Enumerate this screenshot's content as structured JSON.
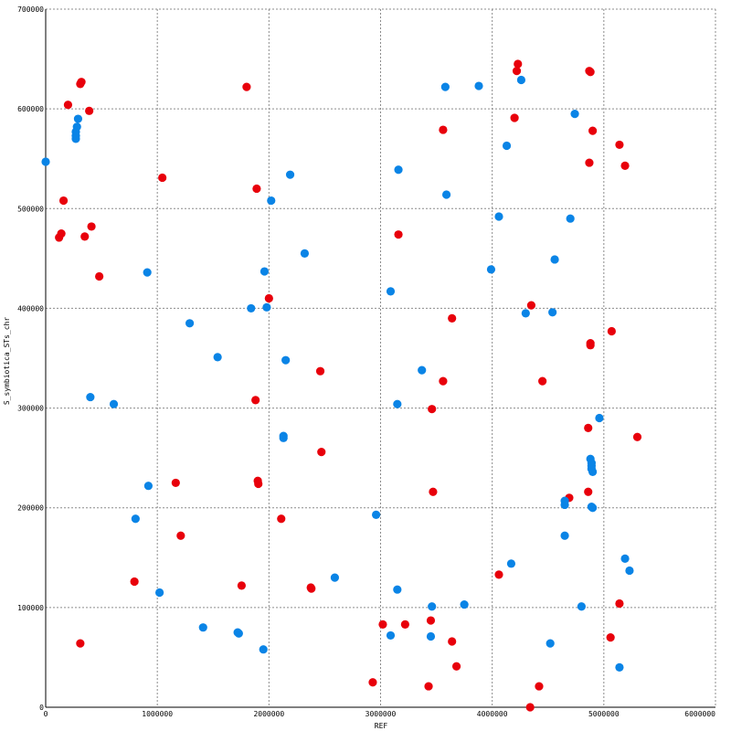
{
  "chart_data": {
    "type": "scatter",
    "title": "",
    "xlabel": "REF",
    "ylabel": "S_symbiotica_STs_chr",
    "xlim": [
      0,
      6000000
    ],
    "ylim": [
      0,
      700000
    ],
    "x_ticks": [
      0,
      1000000,
      2000000,
      3000000,
      4000000,
      5000000,
      6000000
    ],
    "y_ticks": [
      0,
      100000,
      200000,
      300000,
      400000,
      500000,
      600000,
      700000
    ],
    "x_tick_labels": [
      "0",
      "1000000",
      "2000000",
      "3000000",
      "4000000",
      "5000000",
      "6000000"
    ],
    "y_tick_labels": [
      "0",
      "100000",
      "200000",
      "300000",
      "400000",
      "500000",
      "600000",
      "700000"
    ],
    "grid": true,
    "legend": "none",
    "colors": {
      "red": "#e8000b",
      "blue": "#0a84e6",
      "grid": "#8c8c8c"
    },
    "series": [
      {
        "color": "#e8000b",
        "points": [
          [
            320000,
            627000
          ],
          [
            310000,
            625000
          ],
          [
            200000,
            604000
          ],
          [
            390000,
            598000
          ],
          [
            1045000,
            531000
          ],
          [
            1800000,
            622000
          ],
          [
            1890000,
            520000
          ],
          [
            160000,
            508000
          ],
          [
            140000,
            475000
          ],
          [
            120000,
            471000
          ],
          [
            410000,
            482000
          ],
          [
            350000,
            472000
          ],
          [
            480000,
            432000
          ],
          [
            2000000,
            410000
          ],
          [
            1880000,
            308000
          ],
          [
            2460000,
            337000
          ],
          [
            2470000,
            256000
          ],
          [
            1165000,
            225000
          ],
          [
            1900000,
            227000
          ],
          [
            1905000,
            224000
          ],
          [
            2110000,
            189000
          ],
          [
            1210000,
            172000
          ],
          [
            795000,
            126000
          ],
          [
            1755000,
            122000
          ],
          [
            2375000,
            120000
          ],
          [
            2380000,
            119000
          ],
          [
            310000,
            64000
          ],
          [
            3160000,
            474000
          ],
          [
            3640000,
            390000
          ],
          [
            3560000,
            327000
          ],
          [
            3460000,
            299000
          ],
          [
            3470000,
            216000
          ],
          [
            3020000,
            83000
          ],
          [
            3220000,
            83000
          ],
          [
            3450000,
            87000
          ],
          [
            3640000,
            66000
          ],
          [
            3680000,
            41000
          ],
          [
            2930000,
            25000
          ],
          [
            3430000,
            21000
          ],
          [
            3560000,
            579000
          ],
          [
            4230000,
            645000
          ],
          [
            4220000,
            638000
          ],
          [
            4200000,
            591000
          ],
          [
            4350000,
            403000
          ],
          [
            4450000,
            327000
          ],
          [
            4060000,
            133000
          ],
          [
            4420000,
            21000
          ],
          [
            4340000,
            0
          ],
          [
            4870000,
            638000
          ],
          [
            4880000,
            637000
          ],
          [
            4900000,
            578000
          ],
          [
            4870000,
            546000
          ],
          [
            5140000,
            564000
          ],
          [
            5190000,
            543000
          ],
          [
            4880000,
            365000
          ],
          [
            4880000,
            363000
          ],
          [
            5070000,
            377000
          ],
          [
            4860000,
            280000
          ],
          [
            4860000,
            216000
          ],
          [
            4690000,
            210000
          ],
          [
            5300000,
            271000
          ],
          [
            5140000,
            104000
          ],
          [
            5060000,
            70000
          ]
        ]
      },
      {
        "color": "#0a84e6",
        "points": [
          [
            0,
            547000
          ],
          [
            290000,
            590000
          ],
          [
            280000,
            582000
          ],
          [
            270000,
            577000
          ],
          [
            270000,
            573000
          ],
          [
            270000,
            570000
          ],
          [
            910000,
            436000
          ],
          [
            1290000,
            385000
          ],
          [
            1540000,
            351000
          ],
          [
            400000,
            311000
          ],
          [
            610000,
            304000
          ],
          [
            920000,
            222000
          ],
          [
            805000,
            189000
          ],
          [
            1020000,
            115000
          ],
          [
            1410000,
            80000
          ],
          [
            1720000,
            75000
          ],
          [
            1730000,
            74000
          ],
          [
            1950000,
            58000
          ],
          [
            2190000,
            534000
          ],
          [
            2020000,
            508000
          ],
          [
            2320000,
            455000
          ],
          [
            1960000,
            437000
          ],
          [
            1840000,
            400000
          ],
          [
            1980000,
            401000
          ],
          [
            2150000,
            348000
          ],
          [
            2130000,
            272000
          ],
          [
            2130000,
            270000
          ],
          [
            2590000,
            130000
          ],
          [
            3160000,
            539000
          ],
          [
            3590000,
            514000
          ],
          [
            3580000,
            622000
          ],
          [
            3880000,
            623000
          ],
          [
            3090000,
            417000
          ],
          [
            3370000,
            338000
          ],
          [
            3150000,
            304000
          ],
          [
            2960000,
            193000
          ],
          [
            3150000,
            118000
          ],
          [
            3460000,
            101000
          ],
          [
            3750000,
            103000
          ],
          [
            3090000,
            72000
          ],
          [
            3450000,
            71000
          ],
          [
            4260000,
            629000
          ],
          [
            4130000,
            563000
          ],
          [
            4060000,
            492000
          ],
          [
            3990000,
            439000
          ],
          [
            4560000,
            449000
          ],
          [
            4300000,
            395000
          ],
          [
            4540000,
            396000
          ],
          [
            4170000,
            144000
          ],
          [
            4520000,
            64000
          ],
          [
            4740000,
            595000
          ],
          [
            4700000,
            490000
          ],
          [
            4960000,
            290000
          ],
          [
            4880000,
            249000
          ],
          [
            4890000,
            245000
          ],
          [
            4890000,
            242000
          ],
          [
            4890000,
            239000
          ],
          [
            4900000,
            236000
          ],
          [
            4650000,
            207000
          ],
          [
            4650000,
            203000
          ],
          [
            4890000,
            201000
          ],
          [
            4900000,
            200000
          ],
          [
            4650000,
            172000
          ],
          [
            5190000,
            149000
          ],
          [
            5230000,
            137000
          ],
          [
            4800000,
            101000
          ],
          [
            5140000,
            40000
          ]
        ]
      }
    ]
  }
}
